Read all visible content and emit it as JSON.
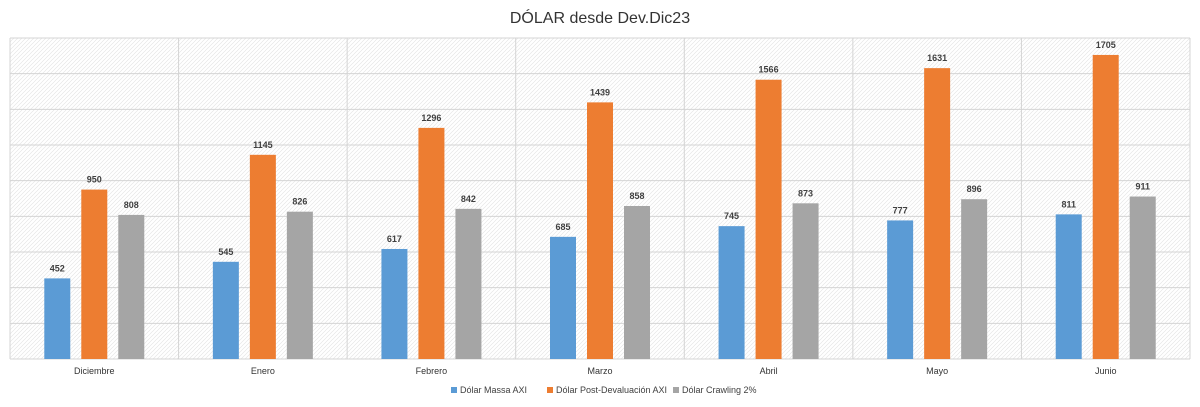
{
  "chart_data": {
    "type": "bar",
    "title": "DÓLAR desde Dev.Dic23",
    "xlabel": "",
    "ylabel": "",
    "ylim": [
      0,
      1800
    ],
    "grid": true,
    "legend_position": "bottom",
    "categories": [
      "Diciembre",
      "Enero",
      "Febrero",
      "Marzo",
      "Abril",
      "Mayo",
      "Junio"
    ],
    "series": [
      {
        "name": "Dólar Massa AXI",
        "color": "#5b9bd5",
        "values": [
          452,
          545,
          617,
          685,
          745,
          777,
          811
        ]
      },
      {
        "name": "Dólar Post-Devaluación AXI",
        "color": "#ed7d31",
        "values": [
          950,
          1145,
          1296,
          1439,
          1566,
          1631,
          1705
        ]
      },
      {
        "name": "Dólar Crawling 2%",
        "color": "#a5a5a5",
        "values": [
          808,
          826,
          842,
          858,
          873,
          896,
          911
        ]
      }
    ]
  }
}
